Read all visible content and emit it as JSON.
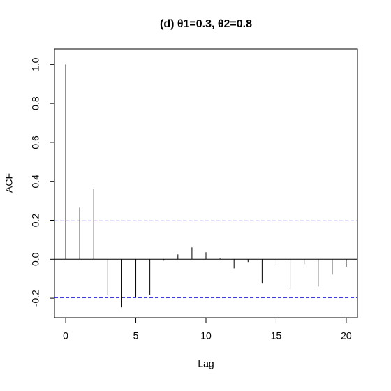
{
  "chart_data": {
    "type": "acf",
    "title": "(d) θ1=0.3, θ2=0.8",
    "x_label": "Lag",
    "y_label": "ACF",
    "x": [
      0,
      1,
      2,
      3,
      4,
      5,
      6,
      7,
      8,
      9,
      10,
      11,
      12,
      13,
      14,
      15,
      16,
      17,
      18,
      19,
      20
    ],
    "values": [
      1.0,
      0.265,
      0.362,
      -0.183,
      -0.247,
      -0.194,
      -0.183,
      -0.007,
      0.025,
      0.061,
      0.036,
      0.004,
      -0.047,
      -0.014,
      -0.125,
      -0.032,
      -0.154,
      -0.025,
      -0.14,
      -0.079,
      -0.039
    ],
    "color": "#000000",
    "confidence_bounds": [
      0.197,
      -0.197
    ],
    "confidence_color": "#0000cc",
    "xlim": [
      -0.8,
      20.8
    ],
    "ylim": [
      -0.3,
      1.08
    ],
    "xticks": [
      0,
      5,
      10,
      15,
      20
    ],
    "yticks": [
      -0.2,
      {
        "value": 0,
        "label": "0.0"
      },
      0.2,
      0.4,
      0.6,
      0.8,
      {
        "value": 1,
        "label": "1.0"
      }
    ]
  }
}
